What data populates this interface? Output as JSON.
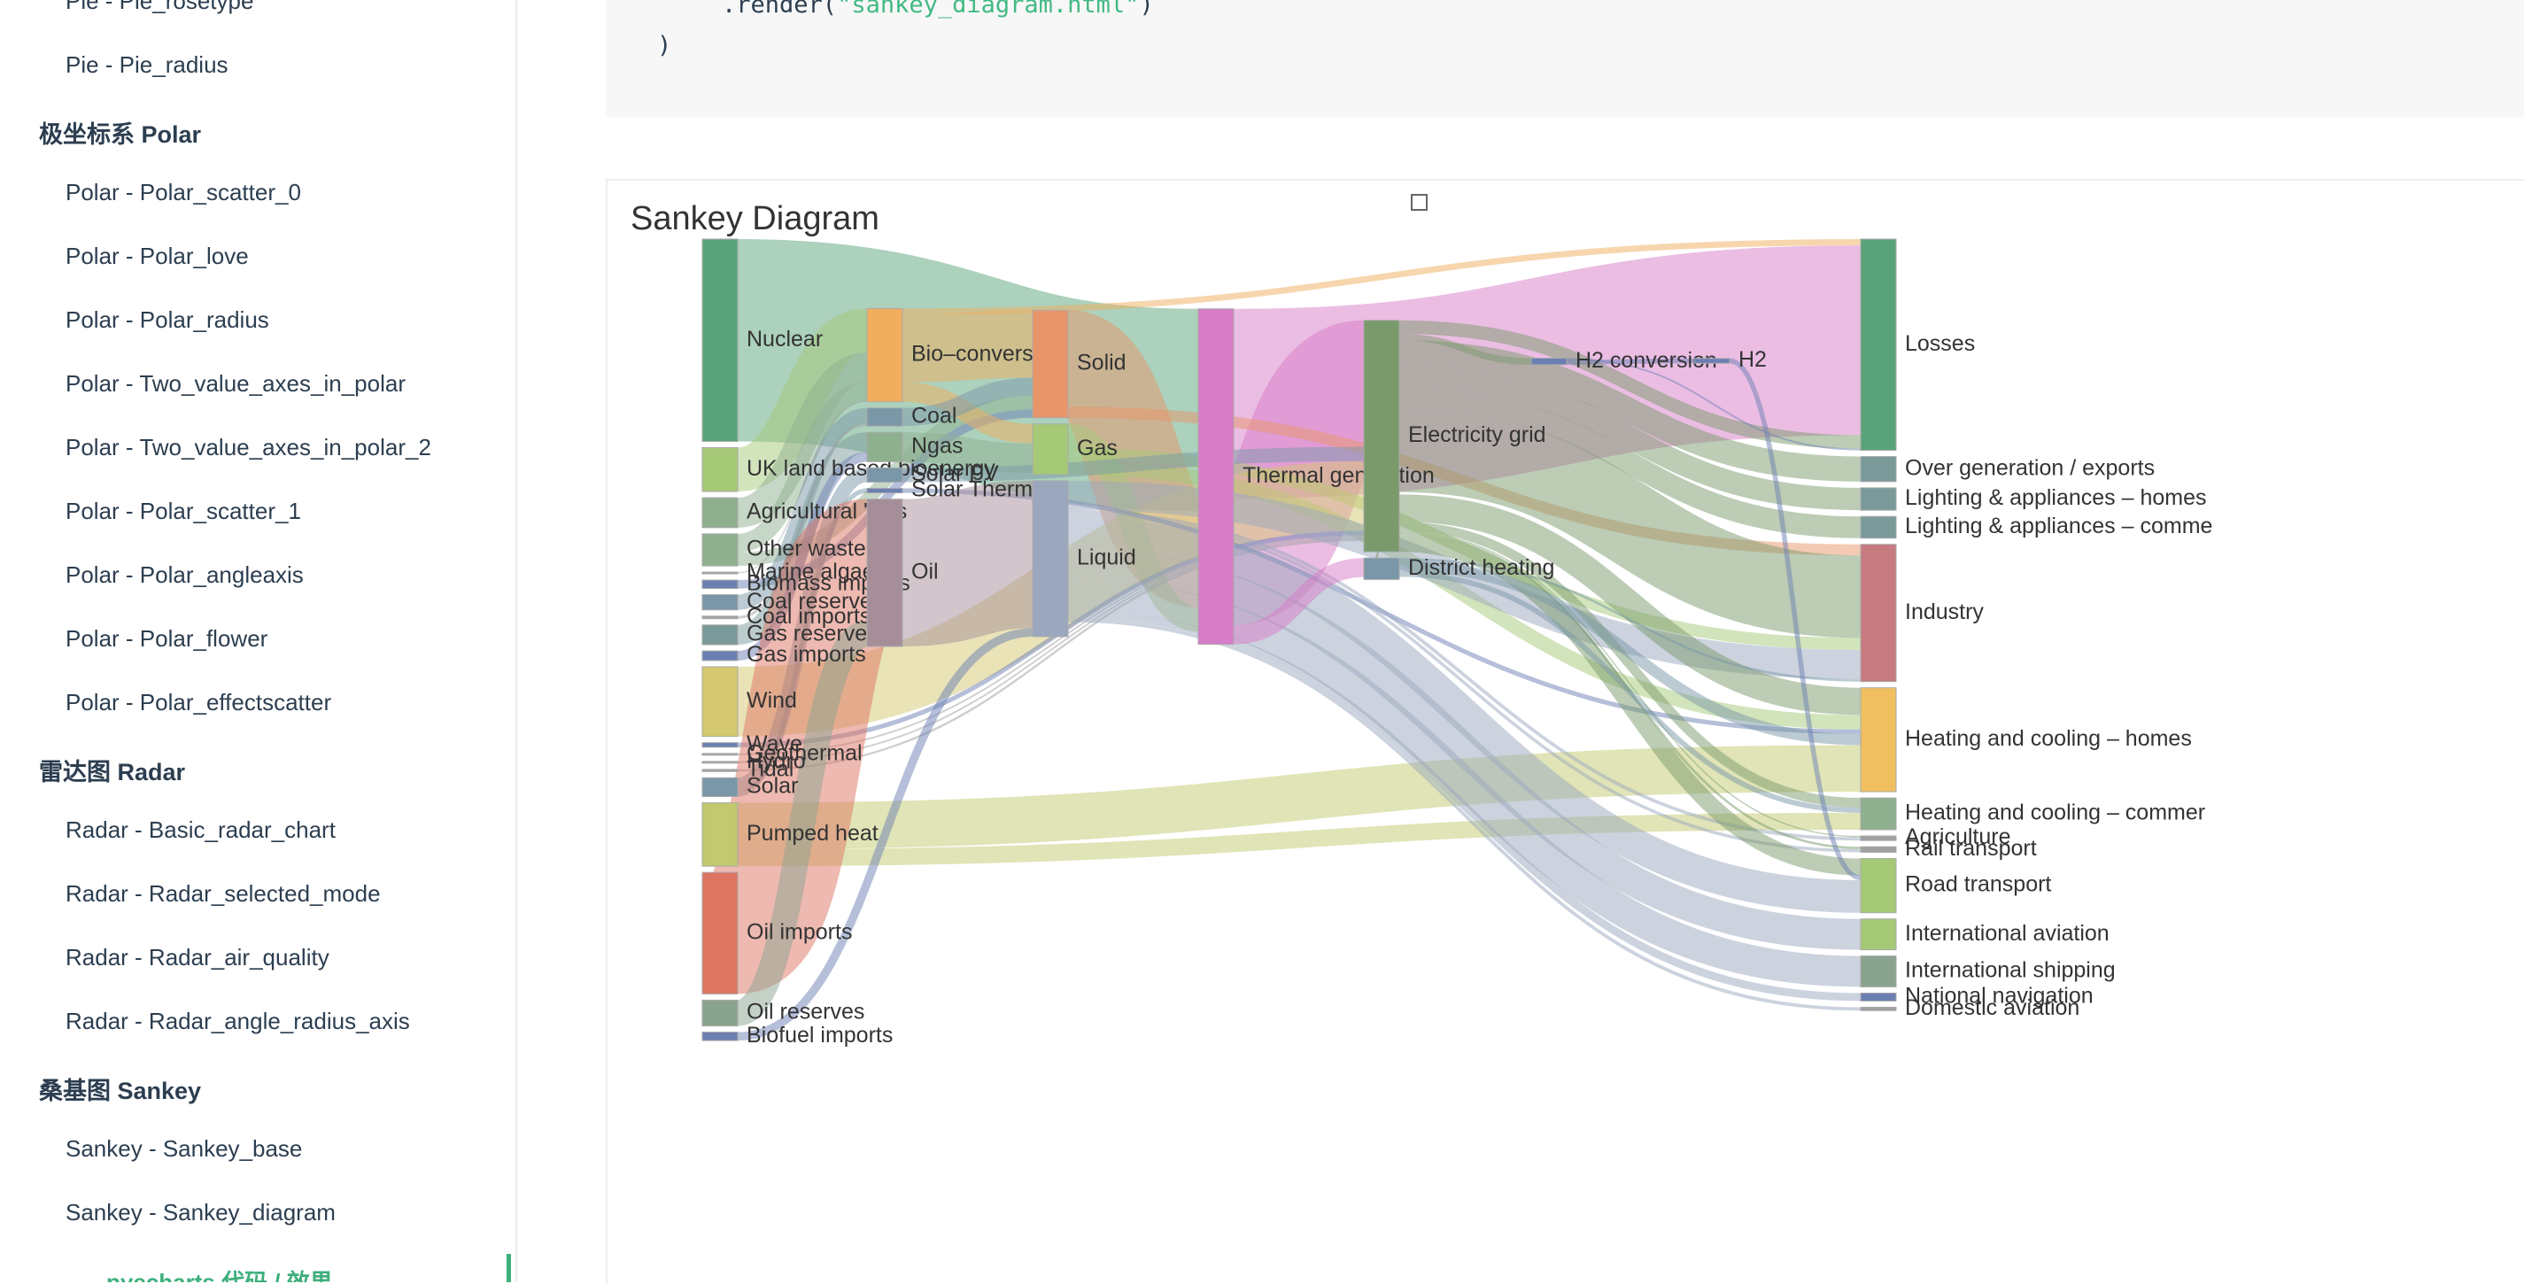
{
  "sidebar": {
    "items": [
      {
        "type": "link",
        "label": "Pie - Pie_rosetype"
      },
      {
        "type": "link",
        "label": "Pie - Pie_radius"
      },
      {
        "type": "group",
        "label": "极坐标系 Polar"
      },
      {
        "type": "link",
        "label": "Polar - Polar_scatter_0"
      },
      {
        "type": "link",
        "label": "Polar - Polar_love"
      },
      {
        "type": "link",
        "label": "Polar - Polar_radius"
      },
      {
        "type": "link",
        "label": "Polar - Two_value_axes_in_polar"
      },
      {
        "type": "link",
        "label": "Polar - Two_value_axes_in_polar_2"
      },
      {
        "type": "link",
        "label": "Polar - Polar_scatter_1"
      },
      {
        "type": "link",
        "label": "Polar - Polar_angleaxis"
      },
      {
        "type": "link",
        "label": "Polar - Polar_flower"
      },
      {
        "type": "link",
        "label": "Polar - Polar_effectscatter"
      },
      {
        "type": "group",
        "label": "雷达图 Radar"
      },
      {
        "type": "link",
        "label": "Radar - Basic_radar_chart"
      },
      {
        "type": "link",
        "label": "Radar - Radar_selected_mode"
      },
      {
        "type": "link",
        "label": "Radar - Radar_air_quality"
      },
      {
        "type": "link",
        "label": "Radar - Radar_angle_radius_axis"
      },
      {
        "type": "group",
        "label": "桑基图 Sankey"
      },
      {
        "type": "link",
        "label": "Sankey - Sankey_base"
      },
      {
        "type": "link",
        "label": "Sankey - Sankey_diagram"
      }
    ],
    "active_sub": "pyecharts 代码 / 效果"
  },
  "code": {
    "line1_prefix": "    .render(",
    "line1_string": "\"sankey_diagram.html\"",
    "line1_suffix": ")",
    "line2": ")"
  },
  "colors": {
    "accent": "#3eaf7c",
    "code_string": "#42b983",
    "code_bg": "#f7f7f7"
  },
  "toolbox": {
    "icon": "save-as-image-icon"
  },
  "chart_data": {
    "type": "sankey",
    "title": "Sankey Diagram",
    "nodes": [
      {
        "name": "Nuclear",
        "color": "#5aa37a",
        "depth": 0
      },
      {
        "name": "UK land based bioenergy",
        "color": "#a5c977",
        "depth": 0
      },
      {
        "name": "Agricultural 'waste'",
        "color": "#8fb08f",
        "depth": 0
      },
      {
        "name": "Other waste",
        "color": "#8fb08f",
        "depth": 0
      },
      {
        "name": "Marine algae",
        "color": "#a0a0a0",
        "depth": 0
      },
      {
        "name": "Biomass imports",
        "color": "#6b7fb3",
        "depth": 0
      },
      {
        "name": "Coal reserves",
        "color": "#7a97a8",
        "depth": 0
      },
      {
        "name": "Coal imports",
        "color": "#a0a0a0",
        "depth": 0
      },
      {
        "name": "Gas reserves",
        "color": "#7a9a9a",
        "depth": 0
      },
      {
        "name": "Gas imports",
        "color": "#6b7fb3",
        "depth": 0
      },
      {
        "name": "Wind",
        "color": "#d4c870",
        "depth": 0
      },
      {
        "name": "Wave",
        "color": "#6b7fb3",
        "depth": 0
      },
      {
        "name": "Geothermal",
        "color": "#a0a0a0",
        "depth": 0
      },
      {
        "name": "Hydro",
        "color": "#a0a0a0",
        "depth": 0
      },
      {
        "name": "Tidal",
        "color": "#a0a0a0",
        "depth": 0
      },
      {
        "name": "Solar",
        "color": "#7a97a8",
        "depth": 0
      },
      {
        "name": "Pumped heat",
        "color": "#c2c96e",
        "depth": 0
      },
      {
        "name": "Oil imports",
        "color": "#de7462",
        "depth": 0
      },
      {
        "name": "Oil reserves",
        "color": "#8aa38f",
        "depth": 0
      },
      {
        "name": "Biofuel imports",
        "color": "#6b7fb3",
        "depth": 0
      },
      {
        "name": "Bio-conversion",
        "color": "#f0ae5e",
        "depth": 1
      },
      {
        "name": "Coal",
        "color": "#7a97a8",
        "depth": 1
      },
      {
        "name": "Ngas",
        "color": "#8fb08f",
        "depth": 1
      },
      {
        "name": "Solar PV",
        "color": "#7a97a8",
        "depth": 1
      },
      {
        "name": "Solar Thermal",
        "color": "#6b7fb3",
        "depth": 1
      },
      {
        "name": "Oil",
        "color": "#a68e99",
        "depth": 1
      },
      {
        "name": "Solid",
        "color": "#e8956a",
        "depth": 2
      },
      {
        "name": "Gas",
        "color": "#a5c977",
        "depth": 2
      },
      {
        "name": "Liquid",
        "color": "#9aa7bd",
        "depth": 2
      },
      {
        "name": "Thermal generation",
        "color": "#d77cc7",
        "depth": 3
      },
      {
        "name": "Electricity grid",
        "color": "#7a9a6b",
        "depth": 4
      },
      {
        "name": "District heating",
        "color": "#7a97a8",
        "depth": 4
      },
      {
        "name": "H2 conversion",
        "color": "#6b7fb3",
        "depth": 5
      },
      {
        "name": "H2",
        "color": "#6b7fb3",
        "depth": 6
      },
      {
        "name": "Losses",
        "color": "#5aa37a",
        "depth": 7
      },
      {
        "name": "Over generation / exports",
        "color": "#7a9a9a",
        "depth": 7
      },
      {
        "name": "Lighting & appliances - homes",
        "color": "#7a9a9a",
        "depth": 7
      },
      {
        "name": "Lighting & appliances - commercial",
        "color": "#7a9a9a",
        "depth": 7
      },
      {
        "name": "Industry",
        "color": "#c77a7f",
        "depth": 7
      },
      {
        "name": "Heating and cooling - homes",
        "color": "#f0c060",
        "depth": 7
      },
      {
        "name": "Heating and cooling - commercial",
        "color": "#8fb08f",
        "depth": 7
      },
      {
        "name": "Agriculture",
        "color": "#a0a0a0",
        "depth": 7
      },
      {
        "name": "Rail transport",
        "color": "#a0a0a0",
        "depth": 7
      },
      {
        "name": "Road transport",
        "color": "#a5c977",
        "depth": 7
      },
      {
        "name": "International aviation",
        "color": "#a5c977",
        "depth": 7
      },
      {
        "name": "International shipping",
        "color": "#8aa38f",
        "depth": 7
      },
      {
        "name": "National navigation",
        "color": "#6b7fb3",
        "depth": 7
      },
      {
        "name": "Domestic aviation",
        "color": "#a0a0a0",
        "depth": 7
      }
    ],
    "display_labels": {
      "Agricultural 'waste'": "Agricultural 'was",
      "Lighting & appliances - homes": "Lighting & appliances – homes",
      "Lighting & appliances - commercial": "Lighting & appliances – comme",
      "Heating and cooling - homes": "Heating and cooling – homes",
      "Heating and cooling - commercial": "Heating and cooling – commer",
      "Bio-conversion": "Bio–conversion"
    },
    "links": [
      {
        "source": "Nuclear",
        "target": "Thermal generation",
        "value": 839
      },
      {
        "source": "Thermal generation",
        "target": "Losses",
        "value": 787
      },
      {
        "source": "Thermal generation",
        "target": "Electricity grid",
        "value": 525
      },
      {
        "source": "UK land based bioenergy",
        "target": "Bio-conversion",
        "value": 182
      },
      {
        "source": "Agricultural 'waste'",
        "target": "Bio-conversion",
        "value": 124
      },
      {
        "source": "Other waste",
        "target": "Bio-conversion",
        "value": 77
      },
      {
        "source": "Other waste",
        "target": "Solid",
        "value": 56
      },
      {
        "source": "Marine algae",
        "target": "Bio-conversion",
        "value": 4
      },
      {
        "source": "Biomass imports",
        "target": "Solid",
        "value": 35
      },
      {
        "source": "Bio-conversion",
        "target": "Solid",
        "value": 280
      },
      {
        "source": "Bio-conversion",
        "target": "Gas",
        "value": 81
      },
      {
        "source": "Bio-conversion",
        "target": "Losses",
        "value": 26
      },
      {
        "source": "Coal reserves",
        "target": "Coal",
        "value": 63
      },
      {
        "source": "Coal imports",
        "target": "Coal",
        "value": 11
      },
      {
        "source": "Coal",
        "target": "Solid",
        "value": 75
      },
      {
        "source": "Gas reserves",
        "target": "Ngas",
        "value": 82
      },
      {
        "source": "Gas imports",
        "target": "Ngas",
        "value": 40
      },
      {
        "source": "Ngas",
        "target": "Gas",
        "value": 122
      },
      {
        "source": "Solid",
        "target": "Thermal generation",
        "value": 400
      },
      {
        "source": "Solid",
        "target": "Industry",
        "value": 46
      },
      {
        "source": "Gas",
        "target": "Thermal generation",
        "value": 100
      },
      {
        "source": "Gas",
        "target": "Industry",
        "value": 50
      },
      {
        "source": "Gas",
        "target": "Heating and cooling - homes",
        "value": 60
      },
      {
        "source": "Wind",
        "target": "Electricity grid",
        "value": 289
      },
      {
        "source": "Wave",
        "target": "Electricity grid",
        "value": 19
      },
      {
        "source": "Geothermal",
        "target": "Electricity grid",
        "value": 7
      },
      {
        "source": "Hydro",
        "target": "Electricity grid",
        "value": 7
      },
      {
        "source": "Tidal",
        "target": "Electricity grid",
        "value": 9
      },
      {
        "source": "Solar",
        "target": "Solar PV",
        "value": 59
      },
      {
        "source": "Solar",
        "target": "Solar Thermal",
        "value": 19
      },
      {
        "source": "Solar PV",
        "target": "Electricity grid",
        "value": 59
      },
      {
        "source": "Solar Thermal",
        "target": "Heating and cooling - homes",
        "value": 19
      },
      {
        "source": "Pumped heat",
        "target": "Heating and cooling - homes",
        "value": 193
      },
      {
        "source": "Pumped heat",
        "target": "Heating and cooling - commercial",
        "value": 70
      },
      {
        "source": "Oil imports",
        "target": "Oil",
        "value": 504
      },
      {
        "source": "Oil reserves",
        "target": "Oil",
        "value": 107
      },
      {
        "source": "Oil",
        "target": "Liquid",
        "value": 611
      },
      {
        "source": "Biofuel imports",
        "target": "Liquid",
        "value": 35
      },
      {
        "source": "Liquid",
        "target": "Industry",
        "value": 121
      },
      {
        "source": "Liquid",
        "target": "Road transport",
        "value": 135
      },
      {
        "source": "Liquid",
        "target": "International aviation",
        "value": 128
      },
      {
        "source": "Liquid",
        "target": "International shipping",
        "value": 128
      },
      {
        "source": "Liquid",
        "target": "National navigation",
        "value": 33
      },
      {
        "source": "Liquid",
        "target": "Domestic aviation",
        "value": 14
      },
      {
        "source": "Liquid",
        "target": "Rail transport",
        "value": 13
      },
      {
        "source": "Liquid",
        "target": "Agriculture",
        "value": 14
      },
      {
        "source": "Electricity grid",
        "target": "Over generation / exports",
        "value": 104
      },
      {
        "source": "Electricity grid",
        "target": "Lighting & appliances - homes",
        "value": 93
      },
      {
        "source": "Electricity grid",
        "target": "Lighting & appliances - commercial",
        "value": 90
      },
      {
        "source": "Electricity grid",
        "target": "Industry",
        "value": 342
      },
      {
        "source": "Electricity grid",
        "target": "Heating and cooling - homes",
        "value": 113
      },
      {
        "source": "Electricity grid",
        "target": "Heating and cooling - commercial",
        "value": 40
      },
      {
        "source": "Electricity grid",
        "target": "Road transport",
        "value": 70
      },
      {
        "source": "Electricity grid",
        "target": "Losses",
        "value": 56
      },
      {
        "source": "Electricity grid",
        "target": "H2 conversion",
        "value": 27
      },
      {
        "source": "Electricity grid",
        "target": "District heating",
        "value": 10
      },
      {
        "source": "Electricity grid",
        "target": "Rail transport",
        "value": 10
      },
      {
        "source": "Electricity grid",
        "target": "Agriculture",
        "value": 5
      },
      {
        "source": "Thermal generation",
        "target": "District heating",
        "value": 79
      },
      {
        "source": "District heating",
        "target": "Industry",
        "value": 10
      },
      {
        "source": "District heating",
        "target": "Heating and cooling - commercial",
        "value": 22
      },
      {
        "source": "District heating",
        "target": "Heating and cooling - homes",
        "value": 46
      },
      {
        "source": "H2 conversion",
        "target": "H2",
        "value": 20
      },
      {
        "source": "H2 conversion",
        "target": "Losses",
        "value": 7
      },
      {
        "source": "H2",
        "target": "Road transport",
        "value": 20
      }
    ]
  }
}
